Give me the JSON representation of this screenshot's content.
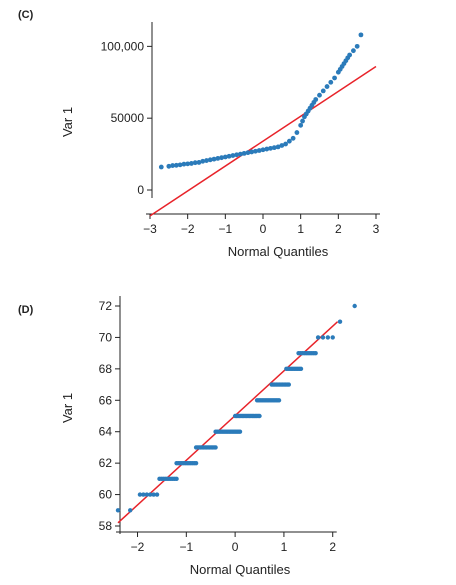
{
  "colors": {
    "points": "#2b7bba",
    "fit_line": "#e8232a",
    "axis": "#222222"
  },
  "chart_data": [
    {
      "type": "scatter",
      "panel_label": "(C)",
      "xlabel": "Normal Quantiles",
      "ylabel": "Var 1",
      "xlim": [
        -3,
        3
      ],
      "ylim": [
        0,
        110000
      ],
      "x_ticks": [
        -3,
        -2,
        -1,
        0,
        1,
        2,
        3
      ],
      "x_tick_labels": [
        "−3",
        "−2",
        "−1",
        "0",
        "1",
        "2",
        "3"
      ],
      "y_ticks": [
        0,
        50000,
        100000
      ],
      "y_tick_labels": [
        "0",
        "50000",
        "100,000"
      ],
      "fit_line": {
        "x": [
          -3,
          3
        ],
        "y": [
          -18000,
          86000
        ]
      },
      "points": {
        "x": [
          -2.7,
          -2.5,
          -2.4,
          -2.3,
          -2.2,
          -2.1,
          -2.0,
          -1.9,
          -1.8,
          -1.7,
          -1.6,
          -1.5,
          -1.4,
          -1.3,
          -1.2,
          -1.1,
          -1.0,
          -0.9,
          -0.8,
          -0.7,
          -0.6,
          -0.5,
          -0.4,
          -0.3,
          -0.2,
          -0.1,
          0.0,
          0.1,
          0.2,
          0.3,
          0.4,
          0.5,
          0.6,
          0.7,
          0.8,
          0.9,
          1.0,
          1.05,
          1.1,
          1.15,
          1.2,
          1.25,
          1.3,
          1.35,
          1.4,
          1.5,
          1.6,
          1.7,
          1.8,
          1.9,
          2.0,
          2.05,
          2.1,
          2.15,
          2.2,
          2.25,
          2.3,
          2.4,
          2.5,
          2.6
        ],
        "y": [
          16000,
          16500,
          17000,
          17200,
          17500,
          18000,
          18200,
          18500,
          19000,
          19200,
          20000,
          20500,
          21000,
          21500,
          22000,
          22500,
          23000,
          23500,
          24000,
          24500,
          25000,
          25500,
          26000,
          26500,
          27000,
          27500,
          28000,
          28500,
          29000,
          29500,
          30000,
          31000,
          32000,
          34000,
          36000,
          40000,
          45000,
          48000,
          51000,
          53000,
          55000,
          57000,
          59000,
          61000,
          63000,
          66000,
          69000,
          72000,
          75000,
          78000,
          82000,
          84000,
          86000,
          88000,
          90000,
          92000,
          94000,
          97000,
          100000,
          108000
        ]
      }
    },
    {
      "type": "scatter",
      "panel_label": "(D)",
      "xlabel": "Normal Quantiles",
      "ylabel": "Var 1",
      "xlim": [
        -2.4,
        2.6
      ],
      "ylim": [
        58,
        72
      ],
      "x_ticks": [
        -2,
        -1,
        0,
        1,
        2
      ],
      "x_tick_labels": [
        "−2",
        "−1",
        "0",
        "1",
        "2"
      ],
      "y_ticks": [
        58,
        60,
        62,
        64,
        66,
        68,
        70,
        72
      ],
      "y_tick_labels": [
        "58",
        "60",
        "62",
        "64",
        "66",
        "68",
        "70",
        "72"
      ],
      "fit_line": {
        "x": [
          -2.4,
          2.1
        ],
        "y": [
          58.2,
          71.0
        ]
      },
      "clusters": [
        {
          "y": 59,
          "x_start": -2.4,
          "x_end": -2.4,
          "n": 1
        },
        {
          "y": 59,
          "x_start": -2.15,
          "x_end": -2.15,
          "n": 1
        },
        {
          "y": 60,
          "x_start": -1.95,
          "x_end": -1.6,
          "n": 6
        },
        {
          "y": 61,
          "x_start": -1.55,
          "x_end": -1.2,
          "n": 10
        },
        {
          "y": 62,
          "x_start": -1.2,
          "x_end": -0.8,
          "n": 12
        },
        {
          "y": 63,
          "x_start": -0.8,
          "x_end": -0.4,
          "n": 14
        },
        {
          "y": 64,
          "x_start": -0.4,
          "x_end": 0.1,
          "n": 18
        },
        {
          "y": 65,
          "x_start": 0.0,
          "x_end": 0.5,
          "n": 18
        },
        {
          "y": 66,
          "x_start": 0.45,
          "x_end": 0.9,
          "n": 16
        },
        {
          "y": 67,
          "x_start": 0.75,
          "x_end": 1.1,
          "n": 12
        },
        {
          "y": 68,
          "x_start": 1.05,
          "x_end": 1.35,
          "n": 10
        },
        {
          "y": 69,
          "x_start": 1.3,
          "x_end": 1.65,
          "n": 10
        },
        {
          "y": 70,
          "x_start": 1.7,
          "x_end": 2.0,
          "n": 4
        },
        {
          "y": 71,
          "x_start": 2.15,
          "x_end": 2.15,
          "n": 1
        },
        {
          "y": 72,
          "x_start": 2.45,
          "x_end": 2.45,
          "n": 1
        }
      ]
    }
  ]
}
